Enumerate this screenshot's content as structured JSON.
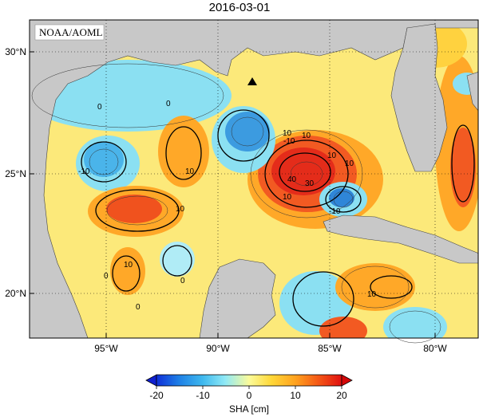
{
  "title": "2016-03-01",
  "credit": "NOAA/AOML",
  "lat_labels": [
    "30°N",
    "25°N",
    "20°N"
  ],
  "lon_labels": [
    "95°W",
    "90°W",
    "85°W",
    "80°W"
  ],
  "contour_labels": [
    "0",
    "0",
    "0",
    "0",
    "0",
    "10",
    "10",
    "10",
    "10",
    "10",
    "10",
    "10",
    "10",
    "-10",
    "-10",
    "-10",
    "10",
    "30",
    "40"
  ],
  "colorbar": {
    "title": "SHA [cm]",
    "ticks": [
      "-20",
      "-10",
      "0",
      "10",
      "20"
    ]
  },
  "colors": {
    "land": "#c8c8c8",
    "neg_strong": "#1f6fd6",
    "neg_mid": "#3fa7ea",
    "neg_weak": "#7fdcf5",
    "zero": "#fafa8c",
    "pos_weak": "#ffd23f",
    "pos_mid": "#ff9a1e",
    "pos_strong": "#ef3a17"
  }
}
